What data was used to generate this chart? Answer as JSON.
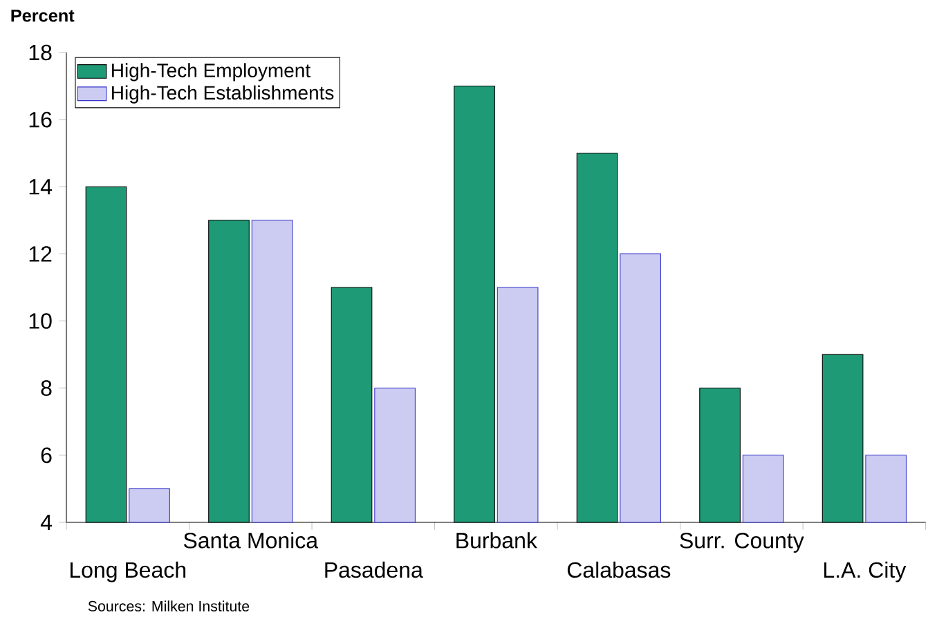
{
  "chart_data": {
    "type": "bar",
    "ylabel": "Percent",
    "categories": [
      "Long Beach",
      "Santa Monica",
      "Pasadena",
      "Burbank",
      "Calabasas",
      "Surr. County",
      "L.A. City"
    ],
    "series": [
      {
        "name": "High-Tech Employment",
        "color": "#1f9a76",
        "values": [
          14,
          13,
          11,
          17,
          15,
          8,
          9
        ]
      },
      {
        "name": "High-Tech Establishments",
        "color": "#3333cc",
        "values": [
          5,
          13,
          8,
          11,
          12,
          6,
          6
        ]
      }
    ],
    "ylim": [
      4,
      18
    ],
    "yticks": [
      4,
      6,
      8,
      10,
      12,
      14,
      16,
      18
    ],
    "legend": "top left",
    "grid": false,
    "annotations": [
      "Sources: Milken Institute"
    ]
  }
}
